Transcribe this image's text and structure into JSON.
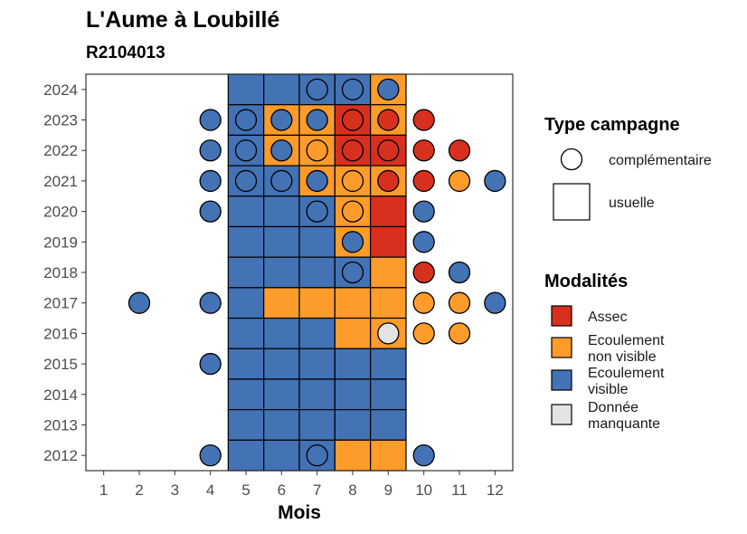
{
  "chart_data": {
    "type": "heatmap",
    "title": "L'Aume à Loubillé",
    "subtitle": "R2104013",
    "xlabel": "Mois",
    "ylabel": "",
    "x_ticks": [
      "1",
      "2",
      "3",
      "4",
      "5",
      "6",
      "7",
      "8",
      "9",
      "10",
      "11",
      "12"
    ],
    "y_ticks": [
      "2012",
      "2013",
      "2014",
      "2015",
      "2016",
      "2017",
      "2018",
      "2019",
      "2020",
      "2021",
      "2022",
      "2023",
      "2024"
    ],
    "xlim": [
      0.5,
      12.5
    ],
    "ylim": [
      2011.5,
      2024.5
    ],
    "grid": false,
    "legend_position": "right",
    "colors": {
      "Assec": "#d7301f",
      "Ecoulement non visible": "#fd9b2b",
      "Ecoulement visible": "#4372b5",
      "Donnée manquante": "#e3e3e3"
    },
    "legends": {
      "type": {
        "title": "Type campagne",
        "items": [
          {
            "label": "complémentaire",
            "shape": "circle"
          },
          {
            "label": "usuelle",
            "shape": "square"
          }
        ]
      },
      "modalites": {
        "title": "Modalités",
        "items": [
          {
            "key": "Assec",
            "lines": [
              "Assec"
            ]
          },
          {
            "key": "Ecoulement non visible",
            "lines": [
              "Ecoulement",
              "non visible"
            ]
          },
          {
            "key": "Ecoulement visible",
            "lines": [
              "Ecoulement",
              "visible"
            ]
          },
          {
            "key": "Donnée manquante",
            "lines": [
              "Donnée",
              "manquante"
            ]
          }
        ]
      }
    },
    "usuelle": [
      {
        "year": 2024,
        "month": 5,
        "modalite": "Ecoulement visible"
      },
      {
        "year": 2024,
        "month": 6,
        "modalite": "Ecoulement visible"
      },
      {
        "year": 2024,
        "month": 7,
        "modalite": "Ecoulement visible"
      },
      {
        "year": 2024,
        "month": 8,
        "modalite": "Ecoulement visible"
      },
      {
        "year": 2024,
        "month": 9,
        "modalite": "Ecoulement non visible"
      },
      {
        "year": 2023,
        "month": 5,
        "modalite": "Ecoulement visible"
      },
      {
        "year": 2023,
        "month": 6,
        "modalite": "Ecoulement non visible"
      },
      {
        "year": 2023,
        "month": 7,
        "modalite": "Ecoulement non visible"
      },
      {
        "year": 2023,
        "month": 8,
        "modalite": "Assec"
      },
      {
        "year": 2023,
        "month": 9,
        "modalite": "Ecoulement non visible"
      },
      {
        "year": 2022,
        "month": 5,
        "modalite": "Ecoulement visible"
      },
      {
        "year": 2022,
        "month": 6,
        "modalite": "Ecoulement non visible"
      },
      {
        "year": 2022,
        "month": 7,
        "modalite": "Ecoulement non visible"
      },
      {
        "year": 2022,
        "month": 8,
        "modalite": "Assec"
      },
      {
        "year": 2022,
        "month": 9,
        "modalite": "Assec"
      },
      {
        "year": 2021,
        "month": 5,
        "modalite": "Ecoulement visible"
      },
      {
        "year": 2021,
        "month": 6,
        "modalite": "Ecoulement visible"
      },
      {
        "year": 2021,
        "month": 7,
        "modalite": "Ecoulement non visible"
      },
      {
        "year": 2021,
        "month": 8,
        "modalite": "Ecoulement non visible"
      },
      {
        "year": 2021,
        "month": 9,
        "modalite": "Ecoulement non visible"
      },
      {
        "year": 2020,
        "month": 5,
        "modalite": "Ecoulement visible"
      },
      {
        "year": 2020,
        "month": 6,
        "modalite": "Ecoulement visible"
      },
      {
        "year": 2020,
        "month": 7,
        "modalite": "Ecoulement visible"
      },
      {
        "year": 2020,
        "month": 8,
        "modalite": "Ecoulement non visible"
      },
      {
        "year": 2020,
        "month": 9,
        "modalite": "Assec"
      },
      {
        "year": 2019,
        "month": 5,
        "modalite": "Ecoulement visible"
      },
      {
        "year": 2019,
        "month": 6,
        "modalite": "Ecoulement visible"
      },
      {
        "year": 2019,
        "month": 7,
        "modalite": "Ecoulement visible"
      },
      {
        "year": 2019,
        "month": 8,
        "modalite": "Ecoulement non visible"
      },
      {
        "year": 2019,
        "month": 9,
        "modalite": "Assec"
      },
      {
        "year": 2018,
        "month": 5,
        "modalite": "Ecoulement visible"
      },
      {
        "year": 2018,
        "month": 6,
        "modalite": "Ecoulement visible"
      },
      {
        "year": 2018,
        "month": 7,
        "modalite": "Ecoulement visible"
      },
      {
        "year": 2018,
        "month": 8,
        "modalite": "Ecoulement visible"
      },
      {
        "year": 2018,
        "month": 9,
        "modalite": "Ecoulement non visible"
      },
      {
        "year": 2017,
        "month": 5,
        "modalite": "Ecoulement visible"
      },
      {
        "year": 2017,
        "month": 6,
        "modalite": "Ecoulement non visible"
      },
      {
        "year": 2017,
        "month": 7,
        "modalite": "Ecoulement non visible"
      },
      {
        "year": 2017,
        "month": 8,
        "modalite": "Ecoulement non visible"
      },
      {
        "year": 2017,
        "month": 9,
        "modalite": "Ecoulement non visible"
      },
      {
        "year": 2016,
        "month": 5,
        "modalite": "Ecoulement visible"
      },
      {
        "year": 2016,
        "month": 6,
        "modalite": "Ecoulement visible"
      },
      {
        "year": 2016,
        "month": 7,
        "modalite": "Ecoulement visible"
      },
      {
        "year": 2016,
        "month": 8,
        "modalite": "Ecoulement non visible"
      },
      {
        "year": 2016,
        "month": 9,
        "modalite": "Ecoulement non visible"
      },
      {
        "year": 2015,
        "month": 5,
        "modalite": "Ecoulement visible"
      },
      {
        "year": 2015,
        "month": 6,
        "modalite": "Ecoulement visible"
      },
      {
        "year": 2015,
        "month": 7,
        "modalite": "Ecoulement visible"
      },
      {
        "year": 2015,
        "month": 8,
        "modalite": "Ecoulement visible"
      },
      {
        "year": 2015,
        "month": 9,
        "modalite": "Ecoulement visible"
      },
      {
        "year": 2014,
        "month": 5,
        "modalite": "Ecoulement visible"
      },
      {
        "year": 2014,
        "month": 6,
        "modalite": "Ecoulement visible"
      },
      {
        "year": 2014,
        "month": 7,
        "modalite": "Ecoulement visible"
      },
      {
        "year": 2014,
        "month": 8,
        "modalite": "Ecoulement visible"
      },
      {
        "year": 2014,
        "month": 9,
        "modalite": "Ecoulement visible"
      },
      {
        "year": 2013,
        "month": 5,
        "modalite": "Ecoulement visible"
      },
      {
        "year": 2013,
        "month": 6,
        "modalite": "Ecoulement visible"
      },
      {
        "year": 2013,
        "month": 7,
        "modalite": "Ecoulement visible"
      },
      {
        "year": 2013,
        "month": 8,
        "modalite": "Ecoulement visible"
      },
      {
        "year": 2013,
        "month": 9,
        "modalite": "Ecoulement visible"
      },
      {
        "year": 2012,
        "month": 5,
        "modalite": "Ecoulement visible"
      },
      {
        "year": 2012,
        "month": 6,
        "modalite": "Ecoulement visible"
      },
      {
        "year": 2012,
        "month": 7,
        "modalite": "Ecoulement visible"
      },
      {
        "year": 2012,
        "month": 8,
        "modalite": "Ecoulement non visible"
      },
      {
        "year": 2012,
        "month": 9,
        "modalite": "Ecoulement non visible"
      }
    ],
    "complementaire": [
      {
        "year": 2024,
        "month": 7,
        "modalite": "Ecoulement visible"
      },
      {
        "year": 2024,
        "month": 8,
        "modalite": "Ecoulement visible"
      },
      {
        "year": 2024,
        "month": 9,
        "modalite": "Ecoulement visible"
      },
      {
        "year": 2023,
        "month": 4,
        "modalite": "Ecoulement visible"
      },
      {
        "year": 2023,
        "month": 5,
        "modalite": "Ecoulement visible"
      },
      {
        "year": 2023,
        "month": 6,
        "modalite": "Ecoulement visible"
      },
      {
        "year": 2023,
        "month": 7,
        "modalite": "Ecoulement visible"
      },
      {
        "year": 2023,
        "month": 8,
        "modalite": "Assec"
      },
      {
        "year": 2023,
        "month": 9,
        "modalite": "Assec"
      },
      {
        "year": 2023,
        "month": 10,
        "modalite": "Assec"
      },
      {
        "year": 2022,
        "month": 4,
        "modalite": "Ecoulement visible"
      },
      {
        "year": 2022,
        "month": 5,
        "modalite": "Ecoulement visible"
      },
      {
        "year": 2022,
        "month": 6,
        "modalite": "Ecoulement visible"
      },
      {
        "year": 2022,
        "month": 7,
        "modalite": "Ecoulement non visible"
      },
      {
        "year": 2022,
        "month": 8,
        "modalite": "Assec"
      },
      {
        "year": 2022,
        "month": 9,
        "modalite": "Assec"
      },
      {
        "year": 2022,
        "month": 10,
        "modalite": "Assec"
      },
      {
        "year": 2022,
        "month": 11,
        "modalite": "Assec"
      },
      {
        "year": 2021,
        "month": 4,
        "modalite": "Ecoulement visible"
      },
      {
        "year": 2021,
        "month": 5,
        "modalite": "Ecoulement visible"
      },
      {
        "year": 2021,
        "month": 6,
        "modalite": "Ecoulement visible"
      },
      {
        "year": 2021,
        "month": 7,
        "modalite": "Ecoulement visible"
      },
      {
        "year": 2021,
        "month": 8,
        "modalite": "Ecoulement non visible"
      },
      {
        "year": 2021,
        "month": 9,
        "modalite": "Assec"
      },
      {
        "year": 2021,
        "month": 10,
        "modalite": "Assec"
      },
      {
        "year": 2021,
        "month": 11,
        "modalite": "Ecoulement non visible"
      },
      {
        "year": 2021,
        "month": 12,
        "modalite": "Ecoulement visible"
      },
      {
        "year": 2020,
        "month": 4,
        "modalite": "Ecoulement visible"
      },
      {
        "year": 2020,
        "month": 7,
        "modalite": "Ecoulement visible"
      },
      {
        "year": 2020,
        "month": 8,
        "modalite": "Ecoulement non visible"
      },
      {
        "year": 2020,
        "month": 10,
        "modalite": "Ecoulement visible"
      },
      {
        "year": 2019,
        "month": 8,
        "modalite": "Ecoulement visible"
      },
      {
        "year": 2019,
        "month": 10,
        "modalite": "Ecoulement visible"
      },
      {
        "year": 2018,
        "month": 8,
        "modalite": "Ecoulement visible"
      },
      {
        "year": 2018,
        "month": 10,
        "modalite": "Assec"
      },
      {
        "year": 2018,
        "month": 11,
        "modalite": "Ecoulement visible"
      },
      {
        "year": 2017,
        "month": 2,
        "modalite": "Ecoulement visible"
      },
      {
        "year": 2017,
        "month": 4,
        "modalite": "Ecoulement visible"
      },
      {
        "year": 2017,
        "month": 10,
        "modalite": "Ecoulement non visible"
      },
      {
        "year": 2017,
        "month": 11,
        "modalite": "Ecoulement non visible"
      },
      {
        "year": 2017,
        "month": 12,
        "modalite": "Ecoulement visible"
      },
      {
        "year": 2016,
        "month": 9,
        "modalite": "Donnée manquante"
      },
      {
        "year": 2016,
        "month": 10,
        "modalite": "Ecoulement non visible"
      },
      {
        "year": 2016,
        "month": 11,
        "modalite": "Ecoulement non visible"
      },
      {
        "year": 2015,
        "month": 4,
        "modalite": "Ecoulement visible"
      },
      {
        "year": 2012,
        "month": 4,
        "modalite": "Ecoulement visible"
      },
      {
        "year": 2012,
        "month": 7,
        "modalite": "Ecoulement visible"
      },
      {
        "year": 2012,
        "month": 10,
        "modalite": "Ecoulement visible"
      }
    ]
  }
}
